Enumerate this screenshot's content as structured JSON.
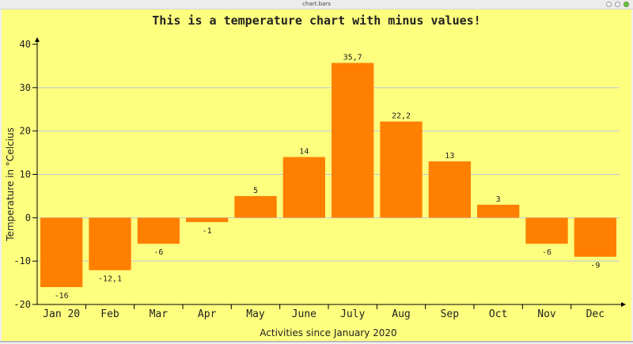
{
  "window": {
    "title": "chart.bars"
  },
  "colors": {
    "background": "#ffff7f",
    "bar": "#ff8000",
    "grid": "#b8c8dc",
    "text": "#222222"
  },
  "chart_data": {
    "type": "bar",
    "title": "This is a temperature chart with minus values!",
    "xlabel": "Activities since January 2020",
    "ylabel": "Temperature in °Celcius",
    "categories": [
      "Jan 20",
      "Feb",
      "Mar",
      "Apr",
      "May",
      "June",
      "July",
      "Aug",
      "Sep",
      "Oct",
      "Nov",
      "Dec"
    ],
    "values": [
      -16,
      -12.1,
      -6,
      -1,
      5,
      14,
      35.7,
      22.2,
      13,
      3,
      -6,
      -9
    ],
    "value_labels": [
      "-16",
      "-12,1",
      "-6",
      "-1",
      "5",
      "14",
      "35,7",
      "22,2",
      "13",
      "3",
      "-6",
      "-9"
    ],
    "ylim": [
      -20,
      40
    ],
    "yticks": [
      -20,
      -10,
      0,
      10,
      20,
      30,
      40
    ],
    "grid": true
  }
}
